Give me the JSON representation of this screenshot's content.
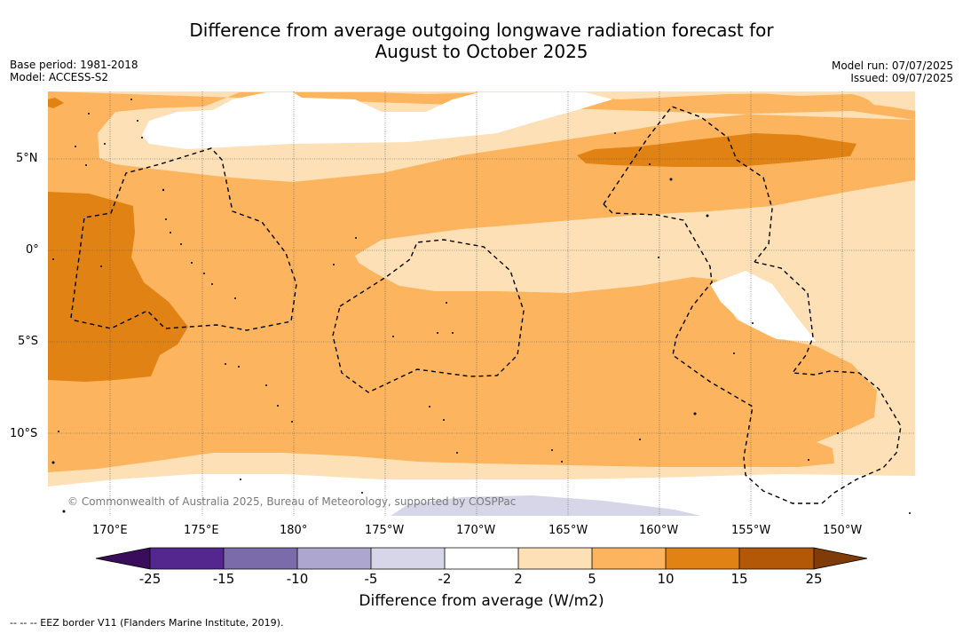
{
  "title_line1": "Difference from average outgoing longwave radiation forecast for",
  "title_line2": "August to October 2025",
  "base_period": "Base period: 1981-2018",
  "model": "Model: ACCESS-S2",
  "model_run": "Model run: 07/07/2025",
  "issued": "Issued: 09/07/2025",
  "lon_ticks": [
    "170°E",
    "175°E",
    "180°",
    "175°W",
    "170°W",
    "165°W",
    "160°W",
    "155°W",
    "150°W"
  ],
  "lat_ticks": [
    "5°N",
    "0°",
    "5°S",
    "10°S"
  ],
  "copyright": "© Commonwealth of Australia 2025, Bureau of Meteorology, supported by COSPPac",
  "colorbar": {
    "title": "Difference from average (W/m2)",
    "labels": [
      "-25",
      "-15",
      "-10",
      "-5",
      "-2",
      "2",
      "5",
      "10",
      "15",
      "25"
    ],
    "colors": [
      "#3a0d5c",
      "#54278f",
      "#7b6bab",
      "#ada7cf",
      "#d6d6e8",
      "#ffffff",
      "#fde0b6",
      "#fdb45e",
      "#e08214",
      "#b35806",
      "#7f3b08"
    ]
  },
  "footnote": "-- -- -- EEZ border V11 (Flanders Marine Institute, 2019).",
  "map_colors": {
    "c5_10": "#fdb45e",
    "c10_15": "#e08214",
    "c2_5": "#fde0b6",
    "neutral": "#ffffff",
    "neg5_2": "#d6d6e8"
  }
}
